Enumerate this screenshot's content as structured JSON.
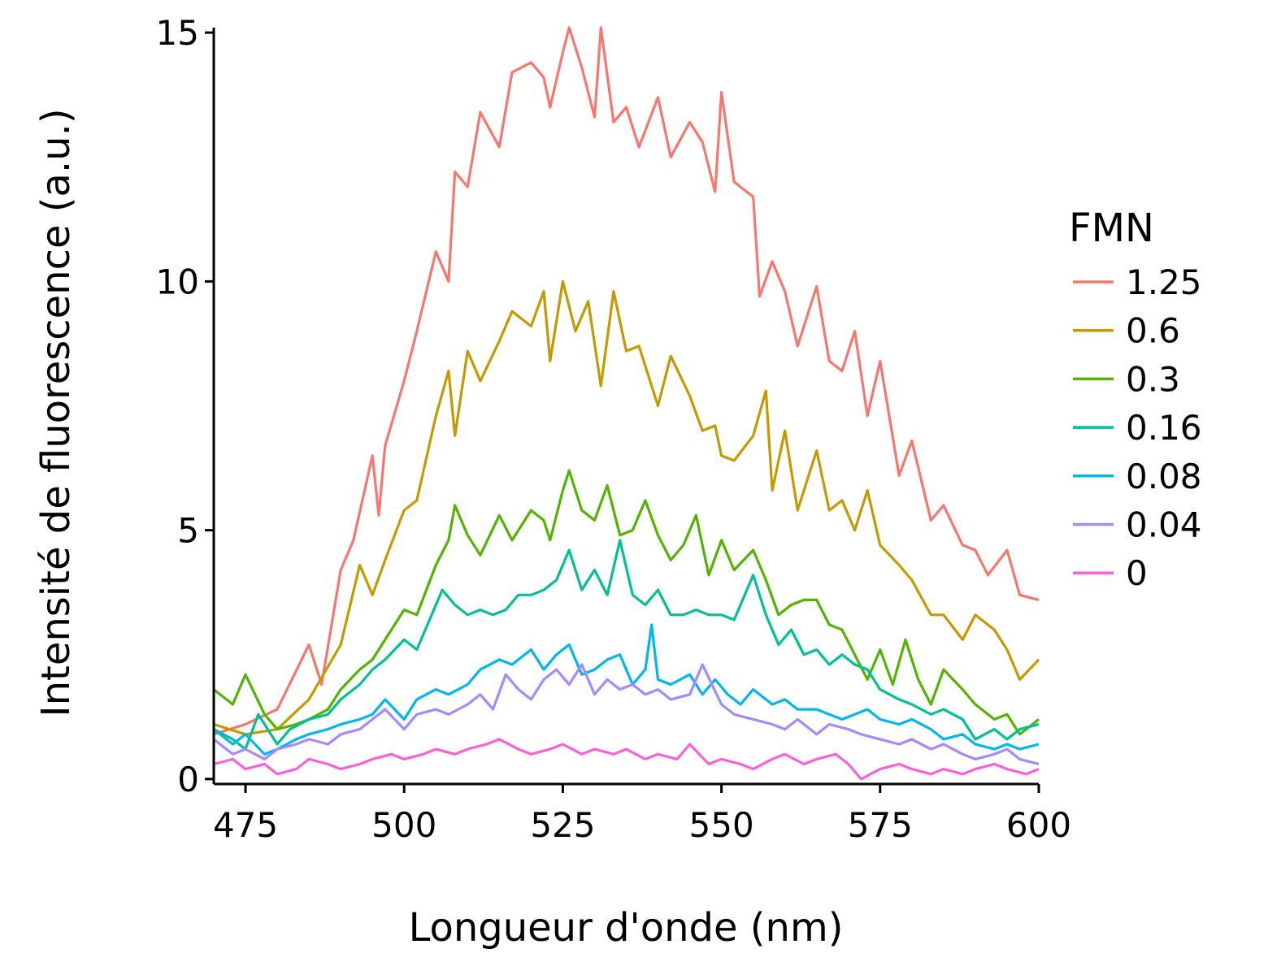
{
  "chart_data": {
    "type": "line",
    "xlabel": "Longueur d'onde (nm)",
    "ylabel": "Intensité de fluorescence (a.u.)",
    "xlim": [
      470,
      600
    ],
    "ylim": [
      0,
      15
    ],
    "x_ticks": [
      475,
      500,
      525,
      550,
      575,
      600
    ],
    "y_ticks": [
      0,
      5,
      10,
      15
    ],
    "grid": false,
    "legend": {
      "title": "FMN",
      "position": "right"
    },
    "series": [
      {
        "name": "1.25",
        "color": "#F8766D",
        "x": [
          470,
          475,
          480,
          485,
          487,
          490,
          492,
          495,
          496,
          497,
          500,
          502,
          505,
          507,
          508,
          510,
          512,
          515,
          517,
          520,
          522,
          523,
          525,
          526,
          528,
          530,
          531,
          533,
          535,
          537,
          540,
          542,
          545,
          547,
          549,
          550,
          552,
          555,
          556,
          558,
          560,
          562,
          565,
          567,
          569,
          571,
          573,
          575,
          578,
          580,
          583,
          585,
          588,
          590,
          592,
          595,
          597,
          600
        ],
        "values": [
          0.9,
          1.1,
          1.4,
          2.7,
          1.9,
          4.2,
          4.8,
          6.5,
          5.3,
          6.7,
          8.0,
          9.0,
          10.6,
          10.0,
          12.2,
          11.9,
          13.4,
          12.7,
          14.2,
          14.4,
          14.1,
          13.5,
          14.6,
          15.1,
          14.3,
          13.3,
          15.1,
          13.2,
          13.5,
          12.7,
          13.7,
          12.5,
          13.2,
          12.8,
          11.8,
          13.8,
          12.0,
          11.7,
          9.7,
          10.4,
          9.8,
          8.7,
          9.9,
          8.4,
          8.2,
          9.0,
          7.3,
          8.4,
          6.1,
          6.8,
          5.2,
          5.5,
          4.7,
          4.6,
          4.1,
          4.6,
          3.7,
          3.6
        ]
      },
      {
        "name": "0.6",
        "color": "#C49A00",
        "x": [
          470,
          475,
          480,
          485,
          490,
          493,
          495,
          497,
          500,
          502,
          505,
          507,
          508,
          510,
          512,
          515,
          517,
          520,
          522,
          523,
          525,
          527,
          529,
          531,
          533,
          535,
          537,
          540,
          542,
          545,
          547,
          549,
          550,
          552,
          555,
          557,
          558,
          560,
          562,
          565,
          567,
          569,
          571,
          573,
          575,
          578,
          580,
          583,
          585,
          588,
          590,
          593,
          595,
          597,
          600
        ],
        "values": [
          1.1,
          0.9,
          1.0,
          1.6,
          2.7,
          4.3,
          3.7,
          4.4,
          5.4,
          5.6,
          7.3,
          8.2,
          6.9,
          8.6,
          8.0,
          8.8,
          9.4,
          9.1,
          9.8,
          8.4,
          10.0,
          9.0,
          9.6,
          7.9,
          9.8,
          8.6,
          8.7,
          7.5,
          8.5,
          7.7,
          7.0,
          7.1,
          6.5,
          6.4,
          6.9,
          7.8,
          5.8,
          7.0,
          5.4,
          6.6,
          5.4,
          5.6,
          5.0,
          5.8,
          4.7,
          4.3,
          4.0,
          3.3,
          3.3,
          2.8,
          3.3,
          3.0,
          2.6,
          2.0,
          2.4
        ]
      },
      {
        "name": "0.3",
        "color": "#53B400",
        "x": [
          470,
          473,
          475,
          478,
          480,
          483,
          485,
          488,
          490,
          493,
          495,
          497,
          500,
          502,
          505,
          507,
          508,
          510,
          512,
          515,
          517,
          520,
          522,
          523,
          525,
          526,
          528,
          530,
          532,
          534,
          536,
          538,
          540,
          542,
          544,
          546,
          548,
          550,
          552,
          555,
          557,
          559,
          561,
          563,
          565,
          567,
          569,
          571,
          573,
          575,
          577,
          579,
          581,
          583,
          585,
          588,
          590,
          593,
          595,
          597,
          600
        ],
        "values": [
          1.8,
          1.5,
          2.1,
          1.3,
          1.0,
          1.1,
          1.2,
          1.4,
          1.8,
          2.2,
          2.4,
          2.8,
          3.4,
          3.3,
          4.3,
          4.8,
          5.5,
          4.9,
          4.5,
          5.3,
          4.8,
          5.4,
          5.2,
          4.8,
          5.8,
          6.2,
          5.4,
          5.2,
          5.9,
          4.9,
          5.0,
          5.6,
          4.9,
          4.4,
          4.7,
          5.3,
          4.1,
          4.8,
          4.2,
          4.6,
          4.0,
          3.3,
          3.5,
          3.6,
          3.6,
          3.1,
          3.0,
          2.5,
          2.0,
          2.6,
          1.9,
          2.8,
          2.0,
          1.5,
          2.2,
          1.8,
          1.5,
          1.2,
          1.3,
          0.9,
          1.2
        ]
      },
      {
        "name": "0.16",
        "color": "#00C094",
        "x": [
          470,
          473,
          475,
          477,
          480,
          482,
          485,
          488,
          490,
          493,
          495,
          497,
          500,
          502,
          504,
          506,
          508,
          510,
          512,
          514,
          516,
          518,
          520,
          522,
          524,
          526,
          528,
          530,
          532,
          534,
          536,
          538,
          540,
          542,
          544,
          546,
          548,
          550,
          552,
          555,
          557,
          559,
          561,
          563,
          565,
          567,
          569,
          571,
          573,
          575,
          578,
          580,
          583,
          585,
          588,
          590,
          593,
          595,
          597,
          600
        ],
        "values": [
          1.0,
          0.8,
          0.6,
          1.3,
          0.7,
          1.0,
          1.2,
          1.3,
          1.6,
          1.9,
          2.2,
          2.4,
          2.8,
          2.6,
          3.2,
          3.8,
          3.5,
          3.3,
          3.4,
          3.3,
          3.4,
          3.7,
          3.7,
          3.8,
          4.0,
          4.6,
          3.8,
          4.2,
          3.7,
          4.8,
          3.7,
          3.5,
          3.8,
          3.3,
          3.3,
          3.4,
          3.3,
          3.3,
          3.2,
          4.1,
          3.3,
          2.7,
          3.0,
          2.5,
          2.6,
          2.3,
          2.5,
          2.3,
          2.2,
          1.8,
          1.6,
          1.5,
          1.3,
          1.4,
          1.2,
          0.8,
          1.0,
          0.8,
          1.0,
          1.1
        ]
      },
      {
        "name": "0.08",
        "color": "#00B6EB",
        "x": [
          470,
          473,
          475,
          478,
          480,
          483,
          485,
          488,
          490,
          493,
          495,
          497,
          500,
          502,
          505,
          507,
          510,
          512,
          515,
          517,
          520,
          522,
          524,
          526,
          528,
          530,
          532,
          534,
          536,
          538,
          539,
          540,
          542,
          545,
          547,
          549,
          551,
          553,
          555,
          558,
          560,
          562,
          565,
          567,
          569,
          571,
          573,
          575,
          578,
          580,
          583,
          585,
          588,
          590,
          593,
          595,
          597,
          600
        ],
        "values": [
          1.0,
          0.7,
          0.9,
          0.5,
          0.6,
          0.8,
          0.9,
          1.0,
          1.1,
          1.2,
          1.3,
          1.6,
          1.2,
          1.6,
          1.8,
          1.7,
          1.9,
          2.2,
          2.4,
          2.3,
          2.6,
          2.2,
          2.5,
          2.7,
          2.1,
          2.2,
          2.4,
          2.5,
          1.9,
          2.2,
          3.1,
          2.0,
          1.9,
          2.1,
          1.7,
          2.0,
          1.7,
          1.5,
          1.8,
          1.5,
          1.6,
          1.4,
          1.4,
          1.3,
          1.2,
          1.3,
          1.4,
          1.2,
          1.1,
          1.2,
          1.0,
          0.8,
          0.9,
          0.7,
          0.6,
          0.7,
          0.6,
          0.7
        ]
      },
      {
        "name": "0.04",
        "color": "#A58AFF",
        "x": [
          470,
          473,
          475,
          478,
          480,
          483,
          485,
          488,
          490,
          493,
          495,
          497,
          500,
          502,
          505,
          507,
          510,
          512,
          514,
          516,
          518,
          520,
          522,
          524,
          526,
          528,
          530,
          532,
          534,
          536,
          538,
          540,
          542,
          545,
          547,
          550,
          552,
          555,
          558,
          560,
          562,
          565,
          567,
          570,
          572,
          575,
          578,
          580,
          583,
          585,
          588,
          590,
          593,
          595,
          597,
          600
        ],
        "values": [
          0.8,
          0.5,
          0.6,
          0.4,
          0.6,
          0.7,
          0.8,
          0.7,
          0.9,
          1.0,
          1.2,
          1.4,
          1.0,
          1.3,
          1.4,
          1.3,
          1.5,
          1.7,
          1.4,
          2.1,
          1.8,
          1.6,
          2.0,
          2.2,
          1.9,
          2.3,
          1.7,
          2.0,
          1.8,
          1.9,
          1.7,
          1.8,
          1.6,
          1.7,
          2.3,
          1.5,
          1.3,
          1.2,
          1.1,
          1.0,
          1.2,
          0.9,
          1.1,
          1.0,
          0.9,
          0.8,
          0.7,
          0.8,
          0.6,
          0.7,
          0.5,
          0.4,
          0.5,
          0.6,
          0.4,
          0.3
        ]
      },
      {
        "name": "0",
        "color": "#FB61D7",
        "x": [
          470,
          473,
          475,
          478,
          480,
          483,
          485,
          488,
          490,
          493,
          495,
          498,
          500,
          503,
          505,
          508,
          510,
          513,
          515,
          518,
          520,
          523,
          525,
          528,
          530,
          533,
          535,
          538,
          540,
          543,
          545,
          548,
          550,
          553,
          555,
          558,
          560,
          563,
          565,
          568,
          570,
          572,
          575,
          578,
          580,
          583,
          585,
          588,
          590,
          593,
          595,
          598,
          600
        ],
        "values": [
          0.3,
          0.4,
          0.2,
          0.3,
          0.1,
          0.2,
          0.4,
          0.3,
          0.2,
          0.3,
          0.4,
          0.5,
          0.4,
          0.5,
          0.6,
          0.5,
          0.6,
          0.7,
          0.8,
          0.6,
          0.5,
          0.6,
          0.7,
          0.5,
          0.6,
          0.5,
          0.6,
          0.4,
          0.5,
          0.4,
          0.7,
          0.3,
          0.4,
          0.3,
          0.2,
          0.4,
          0.5,
          0.3,
          0.4,
          0.5,
          0.3,
          0.0,
          0.2,
          0.3,
          0.2,
          0.1,
          0.2,
          0.1,
          0.2,
          0.3,
          0.2,
          0.1,
          0.2
        ]
      }
    ]
  }
}
